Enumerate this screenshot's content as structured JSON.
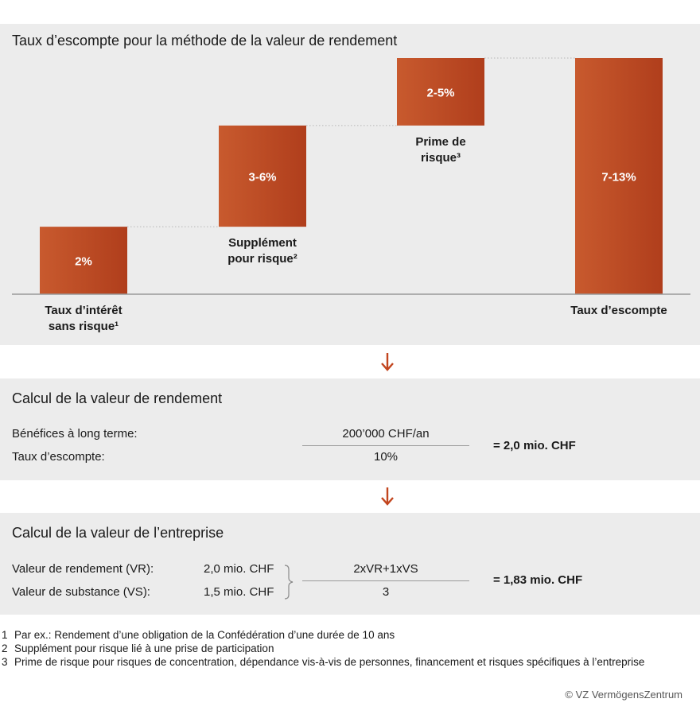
{
  "chart_data": {
    "type": "waterfall",
    "title": "Taux d’escompte pour la méthode de la valeur de rendement",
    "steps": [
      {
        "label": "2%",
        "low": 0,
        "high": 2,
        "caption": [
          "Taux d’intérêt",
          "sans risque¹"
        ]
      },
      {
        "label": "3-6%",
        "low": 2,
        "high": 5,
        "caption": [
          "Supplément",
          "pour risque²"
        ]
      },
      {
        "label": "2-5%",
        "low": 5,
        "high": 7,
        "caption": [
          "Prime de",
          "risque³"
        ]
      },
      {
        "label": "7-13%",
        "low": 0,
        "high": 7,
        "caption": [
          "Taux d’escompte"
        ]
      }
    ],
    "colors": {
      "bar_start": "#c85a2e",
      "bar_end": "#b03e1c",
      "arrow": "#c2451e"
    }
  },
  "calc": {
    "title": "Calcul de la valeur de rendement",
    "label1": "Bénéfices à long terme:",
    "label2": "Taux d’escompte:",
    "numerator": "200’000 CHF/an",
    "denominator": "10%",
    "result": "= 2,0 mio. CHF"
  },
  "enterprise": {
    "title": "Calcul de la valeur de l’entreprise",
    "label1": "Valeur de rendement (VR):",
    "value1": "2,0 mio. CHF",
    "label2": "Valeur de substance (VS):",
    "value2": "1,5 mio. CHF",
    "numerator": "2xVR+1xVS",
    "denominator": "3",
    "result": "= 1,83 mio. CHF"
  },
  "footnotes": [
    {
      "num": "1",
      "text": "Par ex.: Rendement d’une obligation de la Confédération d’une durée de 10 ans"
    },
    {
      "num": "2",
      "text": "Supplément pour risque lié à une prise de participation"
    },
    {
      "num": "3",
      "text": "Prime de risque pour risques de concentration, dépendance vis-à-vis de personnes, financement et risques spécifiques à l’entreprise"
    }
  ],
  "copyright": "© VZ VermögensZentrum"
}
